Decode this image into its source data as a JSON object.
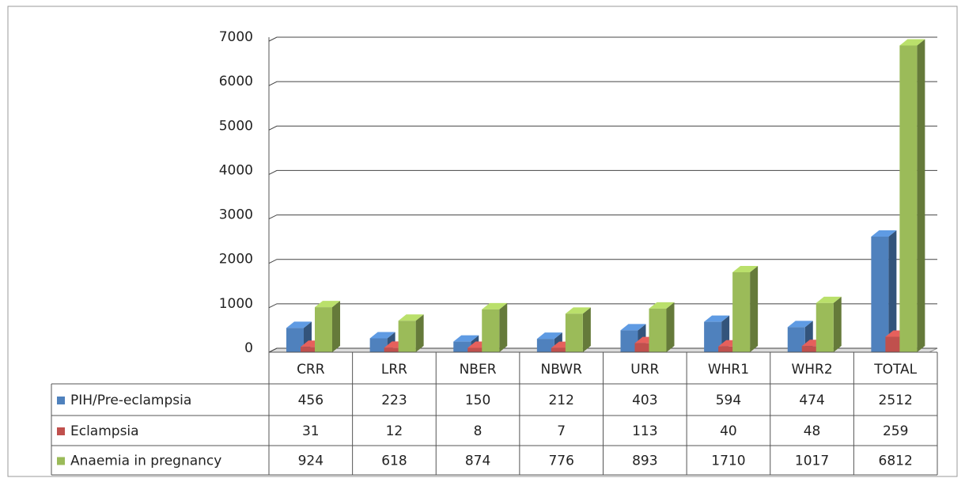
{
  "chart_data": {
    "type": "bar",
    "categories": [
      "CRR",
      "LRR",
      "NBER",
      "NBWR",
      "URR",
      "WHR1",
      "WHR2",
      "TOTAL"
    ],
    "series": [
      {
        "name": "PIH/Pre-eclampsia",
        "color": "#4f81bd",
        "values": [
          456,
          223,
          150,
          212,
          403,
          594,
          474,
          2512
        ]
      },
      {
        "name": "Eclampsia",
        "color": "#c0504d",
        "values": [
          31,
          12,
          8,
          7,
          113,
          40,
          48,
          259
        ]
      },
      {
        "name": "Anaemia in pregnancy",
        "color": "#9bbb59",
        "values": [
          924,
          618,
          874,
          776,
          893,
          1710,
          1017,
          6812
        ]
      }
    ],
    "ylim": [
      0,
      7000
    ],
    "yticks": [
      0,
      1000,
      2000,
      3000,
      4000,
      5000,
      6000,
      7000
    ],
    "grid": true
  }
}
